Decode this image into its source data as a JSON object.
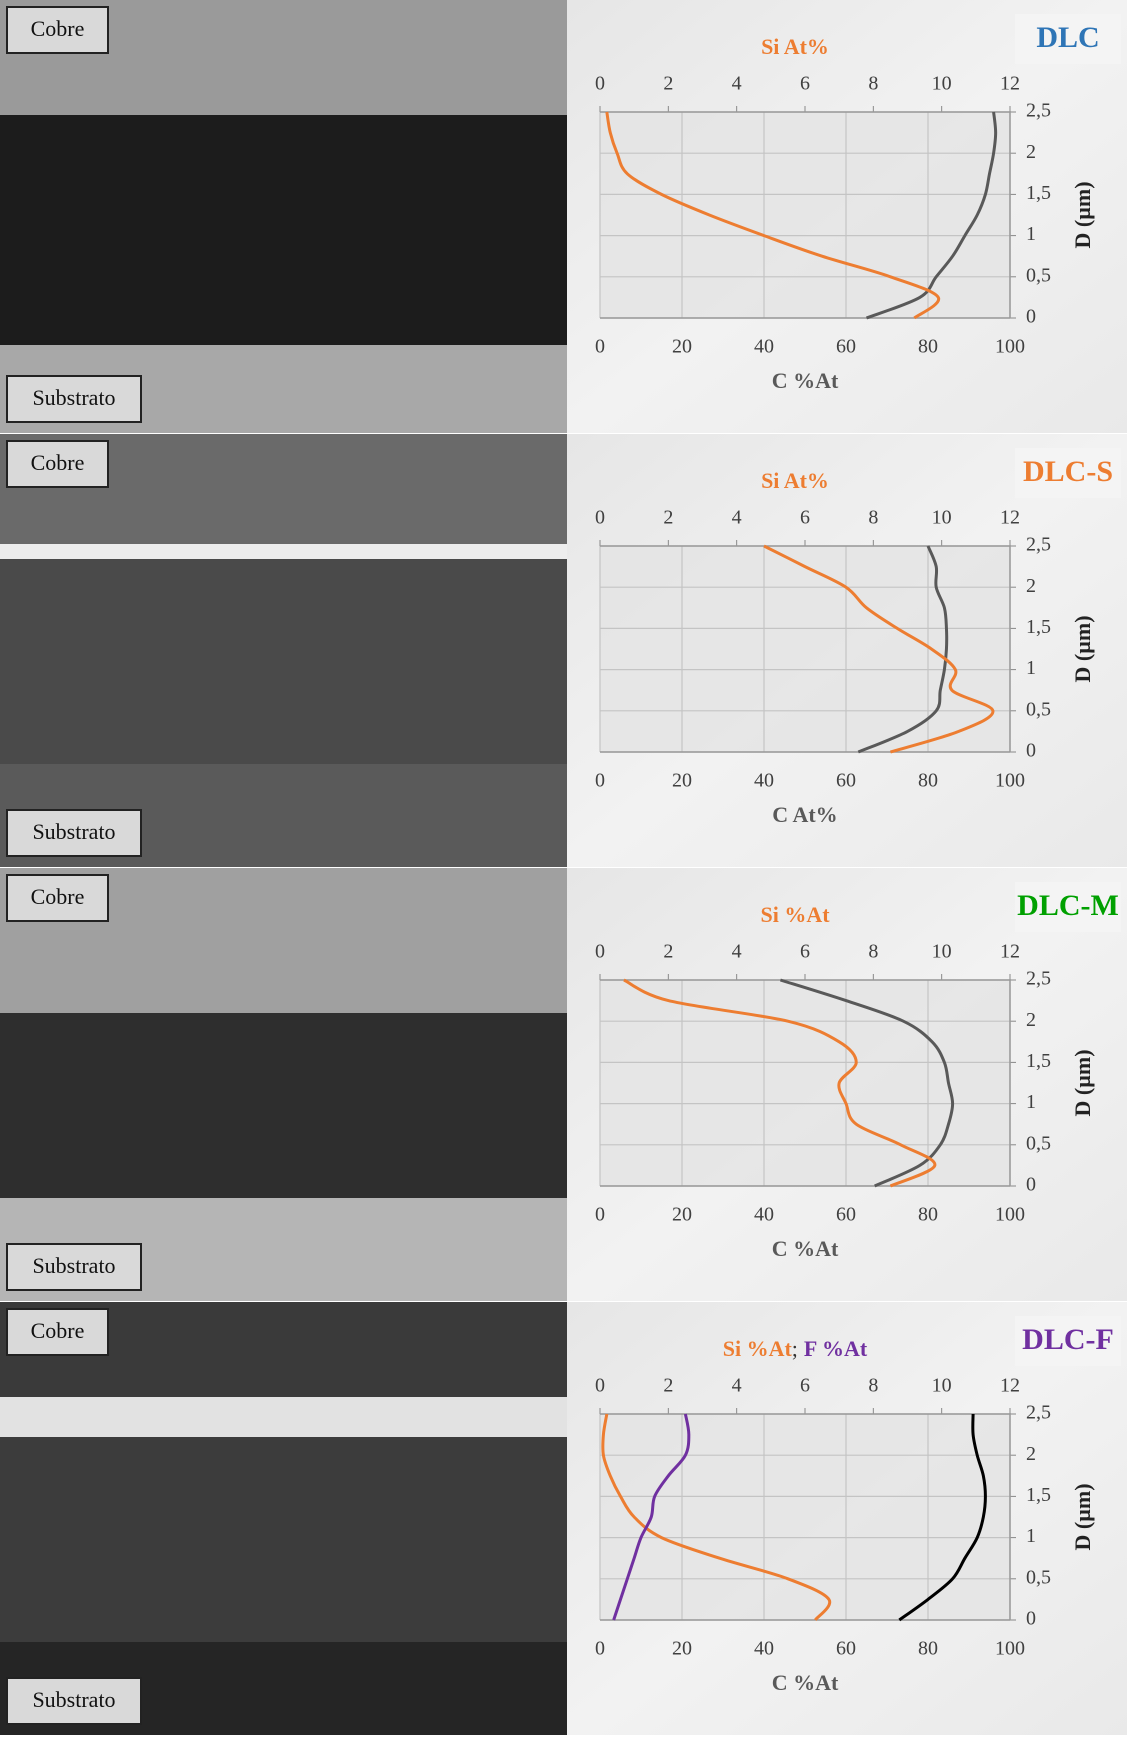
{
  "chart_data": [
    {
      "type": "line",
      "label": "DLC",
      "label_color": "#2e75b6",
      "annotations": [
        "Cobre",
        "Substrato"
      ],
      "xlabel": "C %At",
      "x2label": [
        {
          "text": "Si At%",
          "color": "#ed7d31"
        }
      ],
      "ylabel": "D (µm)",
      "y": [
        0,
        0.25,
        0.5,
        0.75,
        1,
        1.25,
        1.5,
        1.75,
        2,
        2.25,
        2.5
      ],
      "series": [
        {
          "color": "#595959",
          "values": [
            65,
            78,
            82,
            86,
            89,
            92,
            94,
            95,
            96,
            96.5,
            96
          ]
        },
        {
          "color": "#ed7d31",
          "axis": "x2",
          "values": [
            9.2,
            9.9,
            8.5,
            6.5,
            4.8,
            3.2,
            1.8,
            0.8,
            0.5,
            0.3,
            0.2
          ]
        }
      ],
      "xlim": [
        0,
        100
      ],
      "xticks": [
        0,
        20,
        40,
        60,
        80,
        100
      ],
      "x2lim": [
        0,
        12
      ],
      "x2ticks": [
        0,
        2,
        4,
        6,
        8,
        10,
        12
      ],
      "ylim": [
        0,
        2.5
      ],
      "yticks": [
        0,
        {
          "value": 0.5,
          "label": "0,5"
        },
        1,
        {
          "value": 1.5,
          "label": "1,5"
        },
        2,
        {
          "value": 2.5,
          "label": "2,5"
        }
      ],
      "grid": true
    },
    {
      "type": "line",
      "label": "DLC-S",
      "label_color": "#ed7d31",
      "annotations": [
        "Cobre",
        "Substrato"
      ],
      "xlabel": "C At%",
      "x2label": [
        {
          "text": "Si At%",
          "color": "#ed7d31"
        }
      ],
      "ylabel": "D (µm)",
      "y": [
        0,
        0.25,
        0.5,
        0.75,
        1,
        1.25,
        1.5,
        1.75,
        2,
        2.25,
        2.5
      ],
      "series": [
        {
          "color": "#595959",
          "values": [
            63,
            75,
            82,
            83,
            84,
            84.5,
            84.5,
            84,
            82,
            82,
            80
          ]
        },
        {
          "color": "#ed7d31",
          "axis": "x2",
          "values": [
            8.5,
            10.5,
            11.5,
            10.3,
            10.4,
            9.7,
            8.7,
            7.8,
            7.2,
            6,
            4.8
          ]
        }
      ],
      "xlim": [
        0,
        100
      ],
      "xticks": [
        0,
        20,
        40,
        60,
        80,
        100
      ],
      "x2lim": [
        0,
        12
      ],
      "x2ticks": [
        0,
        2,
        4,
        6,
        8,
        10,
        12
      ],
      "ylim": [
        0,
        2.5
      ],
      "yticks": [
        0,
        {
          "value": 0.5,
          "label": "0,5"
        },
        1,
        {
          "value": 1.5,
          "label": "1,5"
        },
        2,
        {
          "value": 2.5,
          "label": "2,5"
        }
      ],
      "grid": true
    },
    {
      "type": "line",
      "label": "DLC-M",
      "label_color": "#00a000",
      "annotations": [
        "Cobre",
        "Substrato"
      ],
      "xlabel": "C %At",
      "x2label": [
        {
          "text": "Si %At",
          "color": "#ed7d31"
        }
      ],
      "ylabel": "D (µm)",
      "y": [
        0,
        0.25,
        0.5,
        0.75,
        1,
        1.25,
        1.5,
        1.75,
        2,
        2.25,
        2.5
      ],
      "series": [
        {
          "color": "#595959",
          "values": [
            67,
            78,
            83,
            85,
            86,
            85,
            84,
            81,
            74,
            60,
            44
          ]
        },
        {
          "color": "#ed7d31",
          "axis": "x2",
          "values": [
            8.5,
            9.8,
            8.8,
            7.5,
            7.2,
            7,
            7.5,
            7,
            5.5,
            2,
            0.7
          ]
        }
      ],
      "xlim": [
        0,
        100
      ],
      "xticks": [
        0,
        20,
        40,
        60,
        80,
        100
      ],
      "x2lim": [
        0,
        12
      ],
      "x2ticks": [
        0,
        2,
        4,
        6,
        8,
        10,
        12
      ],
      "ylim": [
        0,
        2.5
      ],
      "yticks": [
        0,
        {
          "value": 0.5,
          "label": "0,5"
        },
        1,
        {
          "value": 1.5,
          "label": "1,5"
        },
        2,
        {
          "value": 2.5,
          "label": "2,5"
        }
      ],
      "grid": true
    },
    {
      "type": "line",
      "label": "DLC-F",
      "label_color": "#7030a0",
      "annotations": [
        "Cobre",
        "Substrato"
      ],
      "xlabel": "C %At",
      "x2label": [
        {
          "text": "Si %At",
          "color": "#ed7d31"
        },
        {
          "text": ";",
          "color": "#333333"
        },
        {
          "text": "F %At",
          "color": "#7030a0"
        }
      ],
      "ylabel": "D (µm)",
      "y": [
        0,
        0.25,
        0.5,
        0.75,
        1,
        1.25,
        1.5,
        1.75,
        2,
        2.25,
        2.5
      ],
      "series": [
        {
          "color": "#000000",
          "values": [
            73,
            80,
            86,
            89,
            92,
            93.5,
            94,
            93.5,
            92,
            91,
            91
          ]
        },
        {
          "color": "#ed7d31",
          "axis": "x2",
          "values": [
            6.3,
            6.7,
            5.5,
            3.5,
            1.8,
            1,
            0.6,
            0.3,
            0.1,
            0.1,
            0.2
          ]
        },
        {
          "color": "#7030a0",
          "axis": "x2",
          "values": [
            0.4,
            0.6,
            0.8,
            1,
            1.2,
            1.5,
            1.6,
            2,
            2.5,
            2.6,
            2.5
          ]
        }
      ],
      "xlim": [
        0,
        100
      ],
      "xticks": [
        0,
        20,
        40,
        60,
        80,
        100
      ],
      "x2lim": [
        0,
        12
      ],
      "x2ticks": [
        0,
        2,
        4,
        6,
        8,
        10,
        12
      ],
      "ylim": [
        0,
        2.5
      ],
      "yticks": [
        0,
        {
          "value": 0.5,
          "label": "0,5"
        },
        1,
        {
          "value": 1.5,
          "label": "1,5"
        },
        2,
        {
          "value": 2.5,
          "label": "2,5"
        }
      ],
      "grid": true
    }
  ]
}
